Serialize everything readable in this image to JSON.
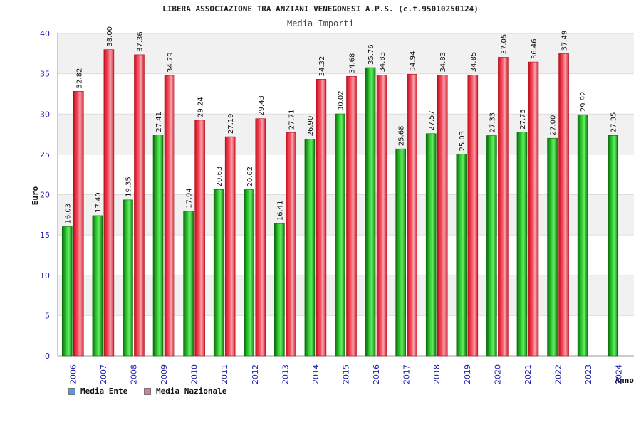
{
  "chart_data": {
    "type": "bar",
    "title": "LIBERA ASSOCIAZIONE TRA ANZIANI VENEGONESI A.P.S. (c.f.95010250124)",
    "subtitle": "Media Importi",
    "xlabel": "Anno",
    "ylabel": "Euro",
    "ylim": [
      0,
      40
    ],
    "yticks": [
      "0",
      "5",
      "10",
      "15",
      "20",
      "25",
      "30",
      "35",
      "40"
    ],
    "categories": [
      "2006",
      "2007",
      "2008",
      "2009",
      "2010",
      "2011",
      "2012",
      "2013",
      "2014",
      "2015",
      "2016",
      "2017",
      "2018",
      "2019",
      "2020",
      "2021",
      "2022",
      "2023",
      "2024"
    ],
    "series": [
      {
        "name": "Media Ente",
        "color": "#22aa22",
        "legend_color": "#5599ee",
        "values": [
          16.03,
          17.4,
          19.35,
          27.41,
          17.94,
          20.63,
          20.62,
          16.41,
          26.9,
          30.02,
          35.76,
          25.68,
          27.57,
          25.03,
          27.33,
          27.75,
          27.0,
          29.92,
          27.35
        ],
        "labels": [
          "16.03",
          "17.40",
          "19.35",
          "27.41",
          "17.94",
          "20.63",
          "20.62",
          "16.41",
          "26.90",
          "30.02",
          "35.76",
          "25.68",
          "27.57",
          "25.03",
          "27.33",
          "27.75",
          "27.00",
          "29.92",
          "27.35"
        ]
      },
      {
        "name": "Media Nazionale",
        "color": "#ee2233",
        "legend_color": "#dd77aa",
        "values": [
          32.82,
          38.0,
          37.36,
          34.79,
          29.24,
          27.19,
          29.43,
          27.71,
          34.32,
          34.68,
          34.83,
          34.94,
          34.83,
          34.85,
          37.05,
          36.46,
          37.49,
          null,
          null
        ],
        "labels": [
          "32.82",
          "38.00",
          "37.36",
          "34.79",
          "29.24",
          "27.19",
          "29.43",
          "27.71",
          "34.32",
          "34.68",
          "34.83",
          "34.94",
          "34.83",
          "34.85",
          "37.05",
          "36.46",
          "37.49",
          null,
          null
        ]
      }
    ]
  }
}
